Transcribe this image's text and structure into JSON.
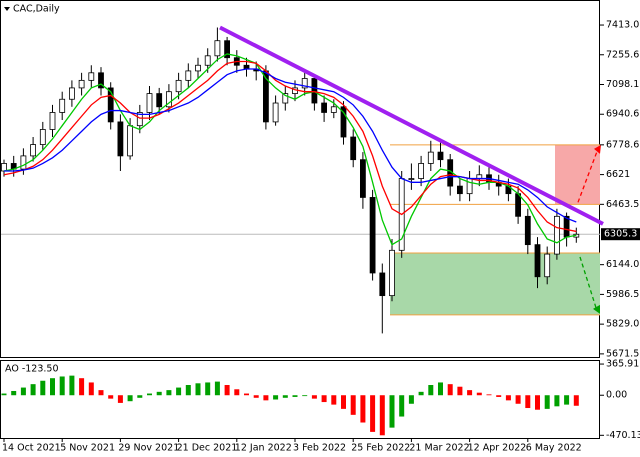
{
  "chart_data": [
    {
      "type": "candlestick",
      "title": "CAC,Daily",
      "categories": [
        "14 Oct 2021",
        null,
        null,
        null,
        null,
        null,
        "5 Nov 2021",
        null,
        null,
        null,
        null,
        null,
        "29 Nov 2021",
        null,
        null,
        null,
        null,
        null,
        "21 Dec 2021",
        null,
        null,
        null,
        null,
        null,
        "12 Jan 2022",
        null,
        null,
        null,
        null,
        null,
        "3 Feb 2022",
        null,
        null,
        null,
        null,
        null,
        "25 Feb 2022",
        null,
        null,
        null,
        null,
        null,
        "21 Mar 2022",
        null,
        null,
        null,
        null,
        null,
        "12 Apr 2022",
        null,
        null,
        null,
        null,
        null,
        "6 May 2022",
        null,
        null,
        null,
        null,
        null
      ],
      "open": [
        6640,
        6680,
        6650,
        6720,
        6780,
        6860,
        6950,
        7020,
        7080,
        7120,
        7160,
        7080,
        6900,
        6720,
        6880,
        6950,
        7050,
        6980,
        7060,
        7120,
        7170,
        7200,
        7250,
        7330,
        7240,
        7200,
        7180,
        7170,
        6900,
        7000,
        7050,
        7080,
        7130,
        7000,
        6950,
        6980,
        6820,
        6700,
        6500,
        6100,
        5980,
        6220,
        6600,
        6600,
        6680,
        6740,
        6700,
        6560,
        6520,
        6600,
        6620,
        6580,
        6560,
        6520,
        6400,
        6250,
        6080,
        6200,
        6400,
        6290
      ],
      "high": [
        6700,
        6720,
        6760,
        6820,
        6900,
        6990,
        7060,
        7120,
        7160,
        7200,
        7190,
        7110,
        6940,
        6920,
        6990,
        7090,
        7080,
        7100,
        7160,
        7210,
        7240,
        7290,
        7400,
        7350,
        7280,
        7240,
        7220,
        7200,
        7040,
        7090,
        7120,
        7170,
        7150,
        7040,
        7020,
        7010,
        6860,
        6740,
        6540,
        6150,
        6280,
        6640,
        6680,
        6720,
        6800,
        6790,
        6730,
        6600,
        6640,
        6670,
        6660,
        6620,
        6600,
        6560,
        6440,
        6290,
        6240,
        6440,
        6420,
        6340
      ],
      "low": [
        6610,
        6610,
        6620,
        6690,
        6750,
        6820,
        6910,
        6980,
        7040,
        7080,
        7040,
        6860,
        6640,
        6700,
        6840,
        6910,
        6940,
        6950,
        7020,
        7080,
        7130,
        7160,
        7220,
        7200,
        7160,
        7140,
        7120,
        6860,
        6880,
        6960,
        7010,
        7040,
        6960,
        6900,
        6920,
        6780,
        6660,
        6440,
        6060,
        5780,
        5950,
        6180,
        6540,
        6560,
        6640,
        6660,
        6510,
        6480,
        6480,
        6560,
        6540,
        6510,
        6480,
        6360,
        6200,
        6020,
        6040,
        6170,
        6240,
        6260
      ],
      "close": [
        6680,
        6650,
        6720,
        6780,
        6860,
        6950,
        7020,
        7080,
        7120,
        7160,
        7080,
        6900,
        6720,
        6880,
        6950,
        7050,
        6980,
        7060,
        7120,
        7170,
        7200,
        7250,
        7330,
        7240,
        7200,
        7180,
        7170,
        6900,
        7000,
        7050,
        7080,
        7130,
        7000,
        6950,
        6980,
        6820,
        6700,
        6500,
        6100,
        5980,
        6220,
        6600,
        6600,
        6680,
        6740,
        6700,
        6560,
        6520,
        6600,
        6620,
        6580,
        6560,
        6520,
        6400,
        6250,
        6080,
        6200,
        6400,
        6290,
        6305
      ],
      "series": [
        {
          "color": "#00c800",
          "values": [
            6640,
            6650,
            6670,
            6700,
            6750,
            6810,
            6880,
            6950,
            7020,
            7080,
            7100,
            7060,
            6960,
            6880,
            6860,
            6900,
            6960,
            7000,
            7040,
            7080,
            7130,
            7180,
            7230,
            7260,
            7250,
            7230,
            7210,
            7130,
            7080,
            7040,
            7020,
            7050,
            7060,
            7030,
            7000,
            6950,
            6870,
            6770,
            6580,
            6380,
            6250,
            6280,
            6400,
            6500,
            6600,
            6650,
            6640,
            6600,
            6580,
            6570,
            6580,
            6580,
            6560,
            6520,
            6460,
            6360,
            6280,
            6260,
            6290,
            6300
          ]
        },
        {
          "color": "#ff0000",
          "values": [
            6620,
            6630,
            6645,
            6665,
            6700,
            6750,
            6810,
            6870,
            6930,
            6990,
            7030,
            7040,
            7000,
            6950,
            6920,
            6920,
            6940,
            6970,
            7000,
            7040,
            7080,
            7120,
            7170,
            7210,
            7220,
            7220,
            7210,
            7170,
            7120,
            7090,
            7070,
            7060,
            7060,
            7050,
            7030,
            6990,
            6930,
            6850,
            6720,
            6560,
            6440,
            6410,
            6450,
            6510,
            6570,
            6610,
            6620,
            6610,
            6600,
            6590,
            6590,
            6580,
            6570,
            6550,
            6500,
            6430,
            6370,
            6340,
            6330,
            6320
          ]
        },
        {
          "color": "#0000ff",
          "values": [
            6640,
            6640,
            6645,
            6655,
            6680,
            6710,
            6750,
            6800,
            6850,
            6900,
            6940,
            6960,
            6960,
            6950,
            6940,
            6940,
            6950,
            6960,
            6980,
            7000,
            7030,
            7070,
            7110,
            7150,
            7170,
            7180,
            7180,
            7160,
            7130,
            7110,
            7100,
            7090,
            7080,
            7070,
            7060,
            7030,
            6990,
            6930,
            6850,
            6750,
            6660,
            6600,
            6580,
            6580,
            6590,
            6600,
            6610,
            6610,
            6600,
            6600,
            6600,
            6590,
            6580,
            6570,
            6540,
            6500,
            6450,
            6420,
            6390,
            6370
          ]
        }
      ],
      "trend_line": {
        "color": "#a020f0",
        "start": 7400,
        "end": 6360
      },
      "zones": [
        {
          "top": 6778.6,
          "bottom": 6463.5,
          "color": "#f7a8a8"
        },
        {
          "top": 6206,
          "bottom": 5878,
          "color": "#a8d8a8"
        }
      ],
      "last_price": 6305.3,
      "ylim": [
        5655,
        7535
      ],
      "yticks": [
        {
          "value": 7413,
          "label": "7413.0"
        },
        7255.6,
        7098.1,
        6940.6,
        6778.6,
        6621,
        6463.5,
        {
          "value": 6144,
          "label": "6144.0"
        },
        5986.5,
        {
          "value": 5829,
          "label": "5829.0"
        },
        5671.5
      ]
    },
    {
      "type": "bar",
      "title": "AO -123.50",
      "up_color": "#00a000",
      "down_color": "#ff0000",
      "values": [
        20,
        50,
        90,
        130,
        170,
        200,
        220,
        230,
        200,
        150,
        60,
        -40,
        -90,
        -70,
        -30,
        20,
        40,
        60,
        90,
        120,
        140,
        150,
        160,
        120,
        70,
        20,
        -30,
        -60,
        -50,
        -30,
        -20,
        -10,
        -40,
        -80,
        -110,
        -160,
        -230,
        -320,
        -430,
        -470,
        -380,
        -250,
        -100,
        40,
        120,
        150,
        130,
        100,
        60,
        30,
        10,
        -20,
        -60,
        -100,
        -150,
        -170,
        -160,
        -130,
        -110,
        -123.5
      ],
      "ylim": [
        -490,
        390
      ],
      "yticks": [
        365.91,
        {
          "value": 0,
          "label": "0.00"
        },
        -470.13
      ]
    }
  ]
}
